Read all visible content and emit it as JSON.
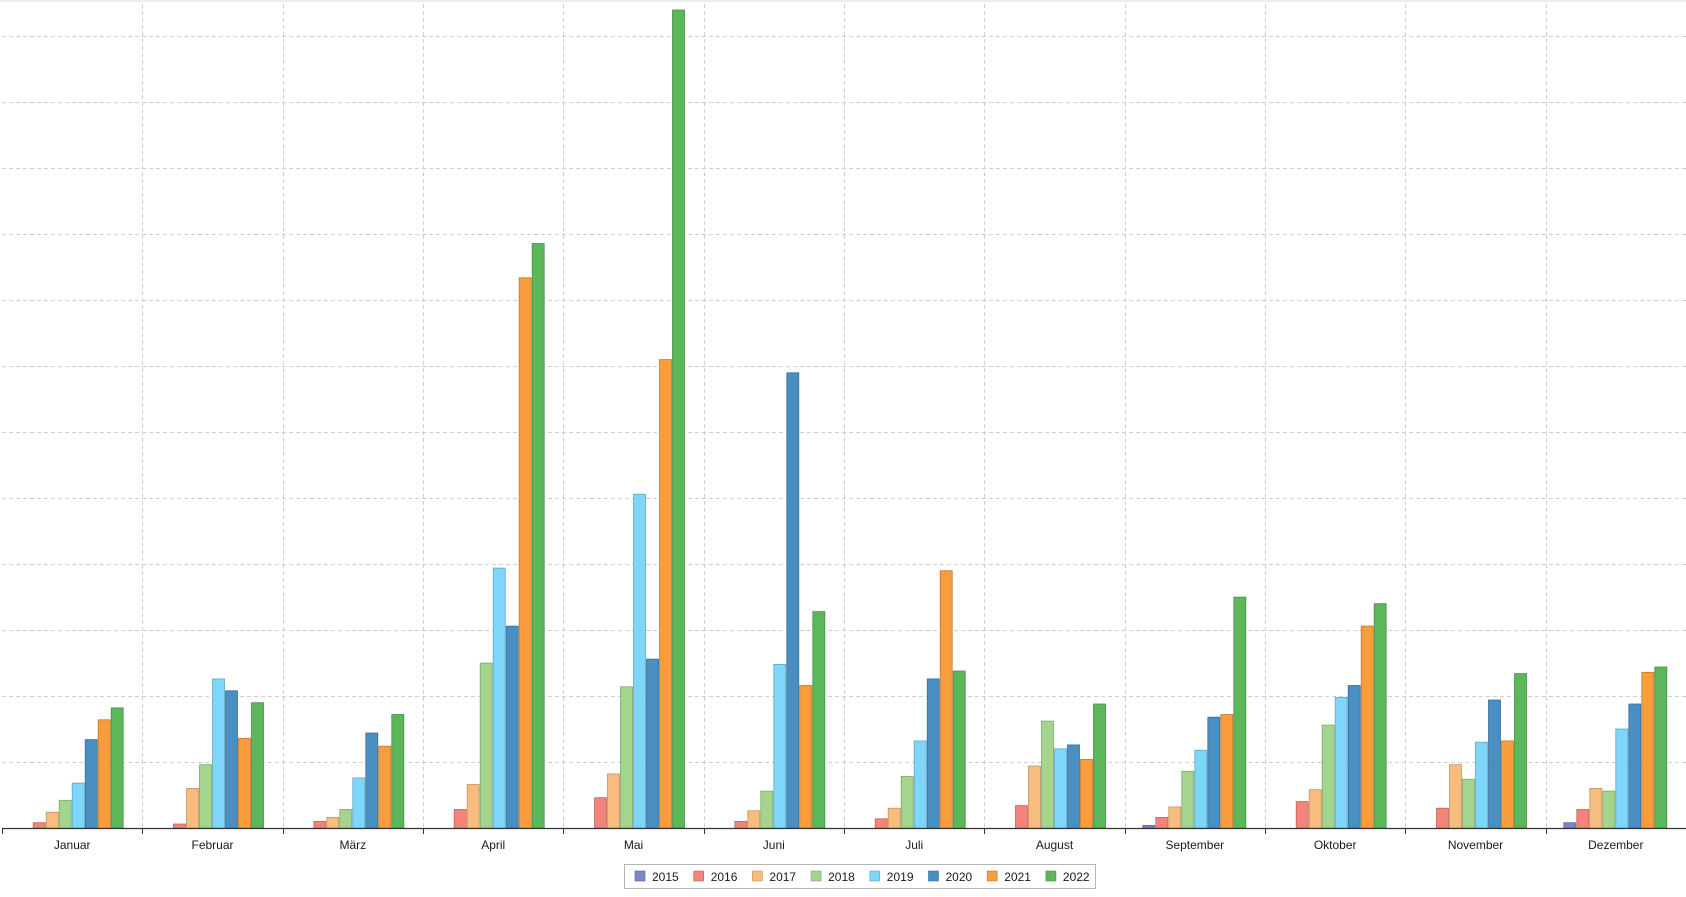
{
  "chart_data": {
    "type": "bar",
    "title": "",
    "xlabel": "",
    "ylabel": "",
    "ylim": [
      0,
      62
    ],
    "y_gridline_step": 5,
    "grid": true,
    "legend_position": "bottom-center",
    "categories": [
      "Januar",
      "Februar",
      "März",
      "April",
      "Mai",
      "Juni",
      "Juli",
      "August",
      "September",
      "Oktober",
      "November",
      "Dezember"
    ],
    "series": [
      {
        "name": "2015",
        "color": "#7b84c9",
        "values": [
          0,
          0,
          0,
          0,
          0,
          0,
          0,
          0,
          0.2,
          0,
          0,
          0.4
        ]
      },
      {
        "name": "2016",
        "color": "#f4847a",
        "values": [
          0.4,
          0.3,
          0.5,
          1.4,
          2.3,
          0.5,
          0.7,
          1.7,
          0.8,
          2.0,
          1.5,
          1.4
        ]
      },
      {
        "name": "2017",
        "color": "#f8bd7e",
        "values": [
          1.2,
          3.0,
          0.8,
          3.3,
          4.1,
          1.3,
          1.5,
          4.7,
          1.6,
          2.9,
          4.8,
          3.0
        ]
      },
      {
        "name": "2018",
        "color": "#a3d58e",
        "values": [
          2.1,
          4.8,
          1.4,
          12.5,
          10.7,
          2.8,
          3.9,
          8.1,
          4.3,
          7.8,
          3.7,
          2.8
        ]
      },
      {
        "name": "2019",
        "color": "#7fd6fb",
        "values": [
          3.4,
          11.3,
          3.8,
          19.7,
          25.3,
          12.4,
          6.6,
          6.0,
          5.9,
          9.9,
          6.5,
          7.5
        ]
      },
      {
        "name": "2020",
        "color": "#4a8fc2",
        "values": [
          6.7,
          10.4,
          7.2,
          15.3,
          12.8,
          34.5,
          11.3,
          6.3,
          8.4,
          10.8,
          9.7,
          9.4
        ]
      },
      {
        "name": "2021",
        "color": "#f89c3c",
        "values": [
          8.2,
          6.8,
          6.2,
          41.7,
          35.5,
          10.8,
          19.5,
          5.2,
          8.6,
          15.3,
          6.6,
          11.8
        ]
      },
      {
        "name": "2022",
        "color": "#5cb65a",
        "values": [
          9.1,
          9.5,
          8.6,
          44.3,
          62.0,
          16.4,
          11.9,
          9.4,
          17.5,
          17.0,
          11.7,
          12.2
        ]
      }
    ]
  }
}
